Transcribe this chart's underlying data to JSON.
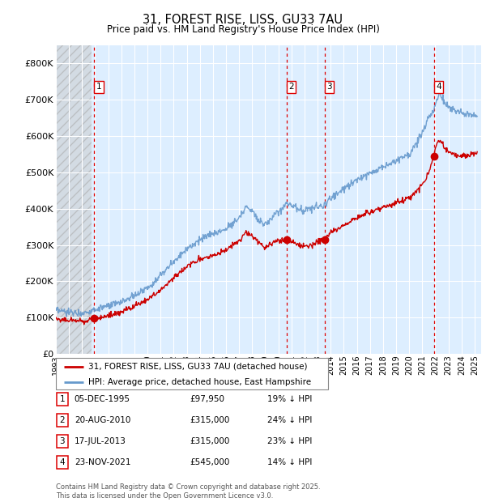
{
  "title": "31, FOREST RISE, LISS, GU33 7AU",
  "subtitle": "Price paid vs. HM Land Registry's House Price Index (HPI)",
  "ylim": [
    0,
    850000
  ],
  "yticks": [
    0,
    100000,
    200000,
    300000,
    400000,
    500000,
    600000,
    700000,
    800000
  ],
  "ytick_labels": [
    "£0",
    "£100K",
    "£200K",
    "£300K",
    "£400K",
    "£500K",
    "£600K",
    "£700K",
    "£800K"
  ],
  "xlim_start": 1993.0,
  "xlim_end": 2025.5,
  "hatch_end": 1995.75,
  "sales": [
    {
      "year": 1995.92,
      "price": 97950,
      "label": "1"
    },
    {
      "year": 2010.63,
      "price": 315000,
      "label": "2"
    },
    {
      "year": 2013.54,
      "price": 315000,
      "label": "3"
    },
    {
      "year": 2021.9,
      "price": 545000,
      "label": "4"
    }
  ],
  "vline_color": "#dd0000",
  "sale_marker_color": "#cc0000",
  "sale_line_color": "#cc0000",
  "hpi_line_color": "#6699cc",
  "background_color": "#ddeeff",
  "grid_color": "#ffffff",
  "legend_entries": [
    "31, FOREST RISE, LISS, GU33 7AU (detached house)",
    "HPI: Average price, detached house, East Hampshire"
  ],
  "table_data": [
    {
      "num": "1",
      "date": "05-DEC-1995",
      "price": "£97,950",
      "note": "19% ↓ HPI"
    },
    {
      "num": "2",
      "date": "20-AUG-2010",
      "price": "£315,000",
      "note": "24% ↓ HPI"
    },
    {
      "num": "3",
      "date": "17-JUL-2013",
      "price": "£315,000",
      "note": "23% ↓ HPI"
    },
    {
      "num": "4",
      "date": "23-NOV-2021",
      "price": "£545,000",
      "note": "14% ↓ HPI"
    }
  ],
  "footer": "Contains HM Land Registry data © Crown copyright and database right 2025.\nThis data is licensed under the Open Government Licence v3.0."
}
